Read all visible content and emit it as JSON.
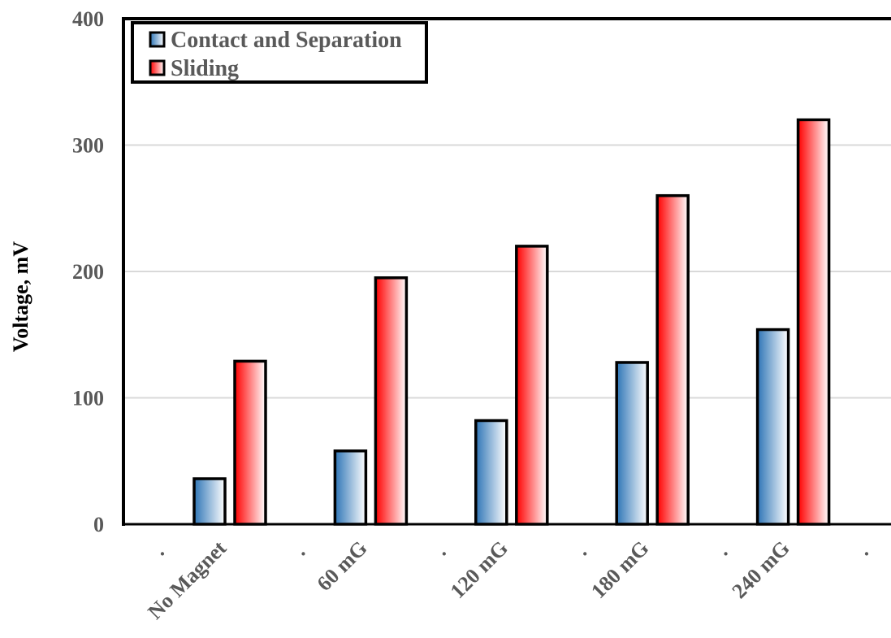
{
  "chart_data": {
    "type": "bar",
    "categories": [
      "No Magnet",
      "60 mG",
      "120 mG",
      "180 mG",
      "240 mG"
    ],
    "series": [
      {
        "name": "Contact and Separation",
        "values": [
          36,
          58,
          82,
          128,
          154
        ],
        "color": "#2E75B6"
      },
      {
        "name": "Sliding",
        "values": [
          129,
          195,
          220,
          260,
          320
        ],
        "color": "#FF0000"
      }
    ],
    "title": "",
    "xlabel": "",
    "ylabel": "Voltage, mV",
    "ylim": [
      0,
      400
    ],
    "yticks": [
      0,
      100,
      200,
      300,
      400
    ],
    "grid": true,
    "legend_position": "top-left",
    "x_tick_marks": [
      "·",
      "·",
      "·",
      "·",
      "·",
      "·"
    ]
  }
}
